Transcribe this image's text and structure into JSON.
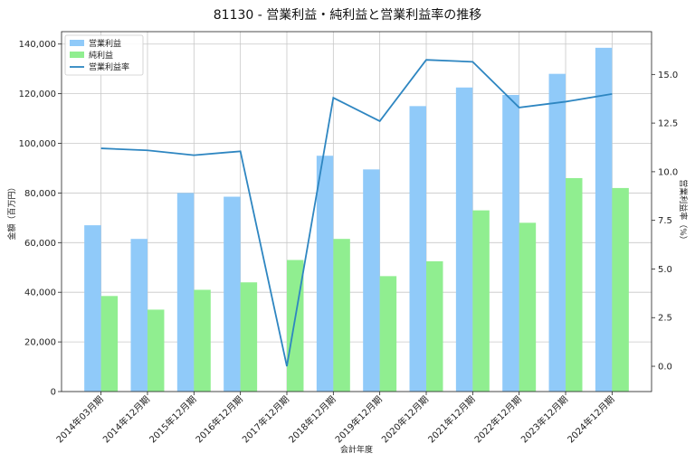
{
  "chart_data": {
    "type": "bar",
    "title": "81130 - 営業利益・純利益と営業利益率の推移",
    "xlabel": "会計年度",
    "ylabel": "金額（百万円）",
    "y2label": "営業利益率（%）",
    "categories": [
      "2014年03月期",
      "2014年12月期",
      "2015年12月期",
      "2016年12月期",
      "2017年12月期",
      "2018年12月期",
      "2019年12月期",
      "2020年12月期",
      "2021年12月期",
      "2022年12月期",
      "2023年12月期",
      "2024年12月期"
    ],
    "series": [
      {
        "name": "営業利益",
        "kind": "bar",
        "axis": "left",
        "color": "#90caf9",
        "values": [
          67000,
          61500,
          80000,
          78500,
          null,
          95000,
          89500,
          115000,
          122500,
          119500,
          128000,
          138500
        ]
      },
      {
        "name": "純利益",
        "kind": "bar",
        "axis": "left",
        "color": "#90ee90",
        "values": [
          38500,
          33000,
          41000,
          44000,
          53000,
          61500,
          46500,
          52500,
          73000,
          68000,
          86000,
          82000
        ]
      },
      {
        "name": "営業利益率",
        "kind": "line",
        "axis": "right",
        "color": "#2e86c1",
        "values": [
          11.2,
          11.1,
          10.85,
          11.05,
          0.0,
          13.8,
          12.6,
          15.75,
          15.65,
          13.3,
          13.6,
          14.0
        ]
      }
    ],
    "ylim": [
      0,
      145000
    ],
    "y2lim": [
      -1.3,
      17.2
    ],
    "yticks": [
      0,
      20000,
      40000,
      60000,
      80000,
      100000,
      120000,
      140000
    ],
    "yticklabels": [
      "0",
      "20,000",
      "40,000",
      "60,000",
      "80,000",
      "100,000",
      "120,000",
      "140,000"
    ],
    "y2ticks": [
      0.0,
      2.5,
      5.0,
      7.5,
      10.0,
      12.5,
      15.0
    ],
    "y2ticklabels": [
      "0.0",
      "2.5",
      "5.0",
      "7.5",
      "10.0",
      "12.5",
      "15.0"
    ],
    "grid": true,
    "legend_position": "top-left"
  }
}
